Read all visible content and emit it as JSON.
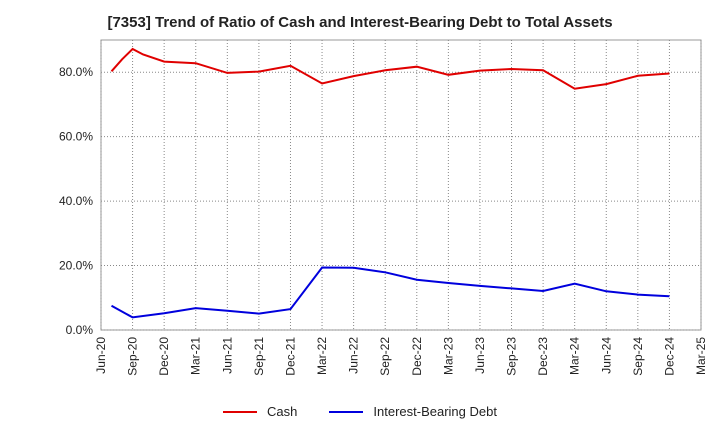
{
  "chart_data": {
    "type": "line",
    "title": "[7353]  Trend of Ratio of Cash and Interest-Bearing Debt to Total Assets",
    "xlabel": "",
    "ylabel": "",
    "ylim": [
      0,
      90
    ],
    "yticks": [
      "0.0%",
      "20.0%",
      "40.0%",
      "60.0%",
      "80.0%"
    ],
    "ytick_values": [
      0,
      20,
      40,
      60,
      80
    ],
    "xticks": [
      "Jun-20",
      "Sep-20",
      "Dec-20",
      "Mar-21",
      "Jun-21",
      "Sep-21",
      "Dec-21",
      "Mar-22",
      "Jun-22",
      "Sep-22",
      "Dec-22",
      "Mar-23",
      "Jun-23",
      "Sep-23",
      "Dec-23",
      "Mar-24",
      "Jun-24",
      "Sep-24",
      "Dec-24",
      "Mar-25"
    ],
    "grid": true,
    "legend_position": "bottom",
    "series": [
      {
        "name": "Cash",
        "color": "#e00000",
        "points": [
          [
            "2020-07",
            80.3
          ],
          [
            "2020-08",
            84.0
          ],
          [
            "2020-09",
            87.2
          ],
          [
            "2020-10",
            85.5
          ],
          [
            "2020-12",
            83.3
          ],
          [
            "2021-03",
            82.8
          ],
          [
            "2021-06",
            79.8
          ],
          [
            "2021-09",
            80.2
          ],
          [
            "2021-12",
            82.0
          ],
          [
            "2022-03",
            76.5
          ],
          [
            "2022-06",
            78.8
          ],
          [
            "2022-09",
            80.6
          ],
          [
            "2022-12",
            81.7
          ],
          [
            "2023-03",
            79.2
          ],
          [
            "2023-06",
            80.5
          ],
          [
            "2023-09",
            81.0
          ],
          [
            "2023-12",
            80.6
          ],
          [
            "2024-03",
            74.9
          ],
          [
            "2024-06",
            76.3
          ],
          [
            "2024-09",
            78.9
          ],
          [
            "2024-12",
            79.6
          ]
        ]
      },
      {
        "name": "Interest-Bearing Debt",
        "color": "#0000dd",
        "points": [
          [
            "2020-07",
            7.5
          ],
          [
            "2020-09",
            3.9
          ],
          [
            "2020-12",
            5.2
          ],
          [
            "2021-03",
            6.8
          ],
          [
            "2021-06",
            6.0
          ],
          [
            "2021-09",
            5.1
          ],
          [
            "2021-12",
            6.5
          ],
          [
            "2022-03",
            19.4
          ],
          [
            "2022-06",
            19.3
          ],
          [
            "2022-09",
            17.9
          ],
          [
            "2022-12",
            15.6
          ],
          [
            "2023-03",
            14.6
          ],
          [
            "2023-06",
            13.7
          ],
          [
            "2023-09",
            12.9
          ],
          [
            "2023-12",
            12.1
          ],
          [
            "2024-03",
            14.4
          ],
          [
            "2024-06",
            12.0
          ],
          [
            "2024-09",
            11.0
          ],
          [
            "2024-12",
            10.5
          ]
        ]
      }
    ]
  }
}
